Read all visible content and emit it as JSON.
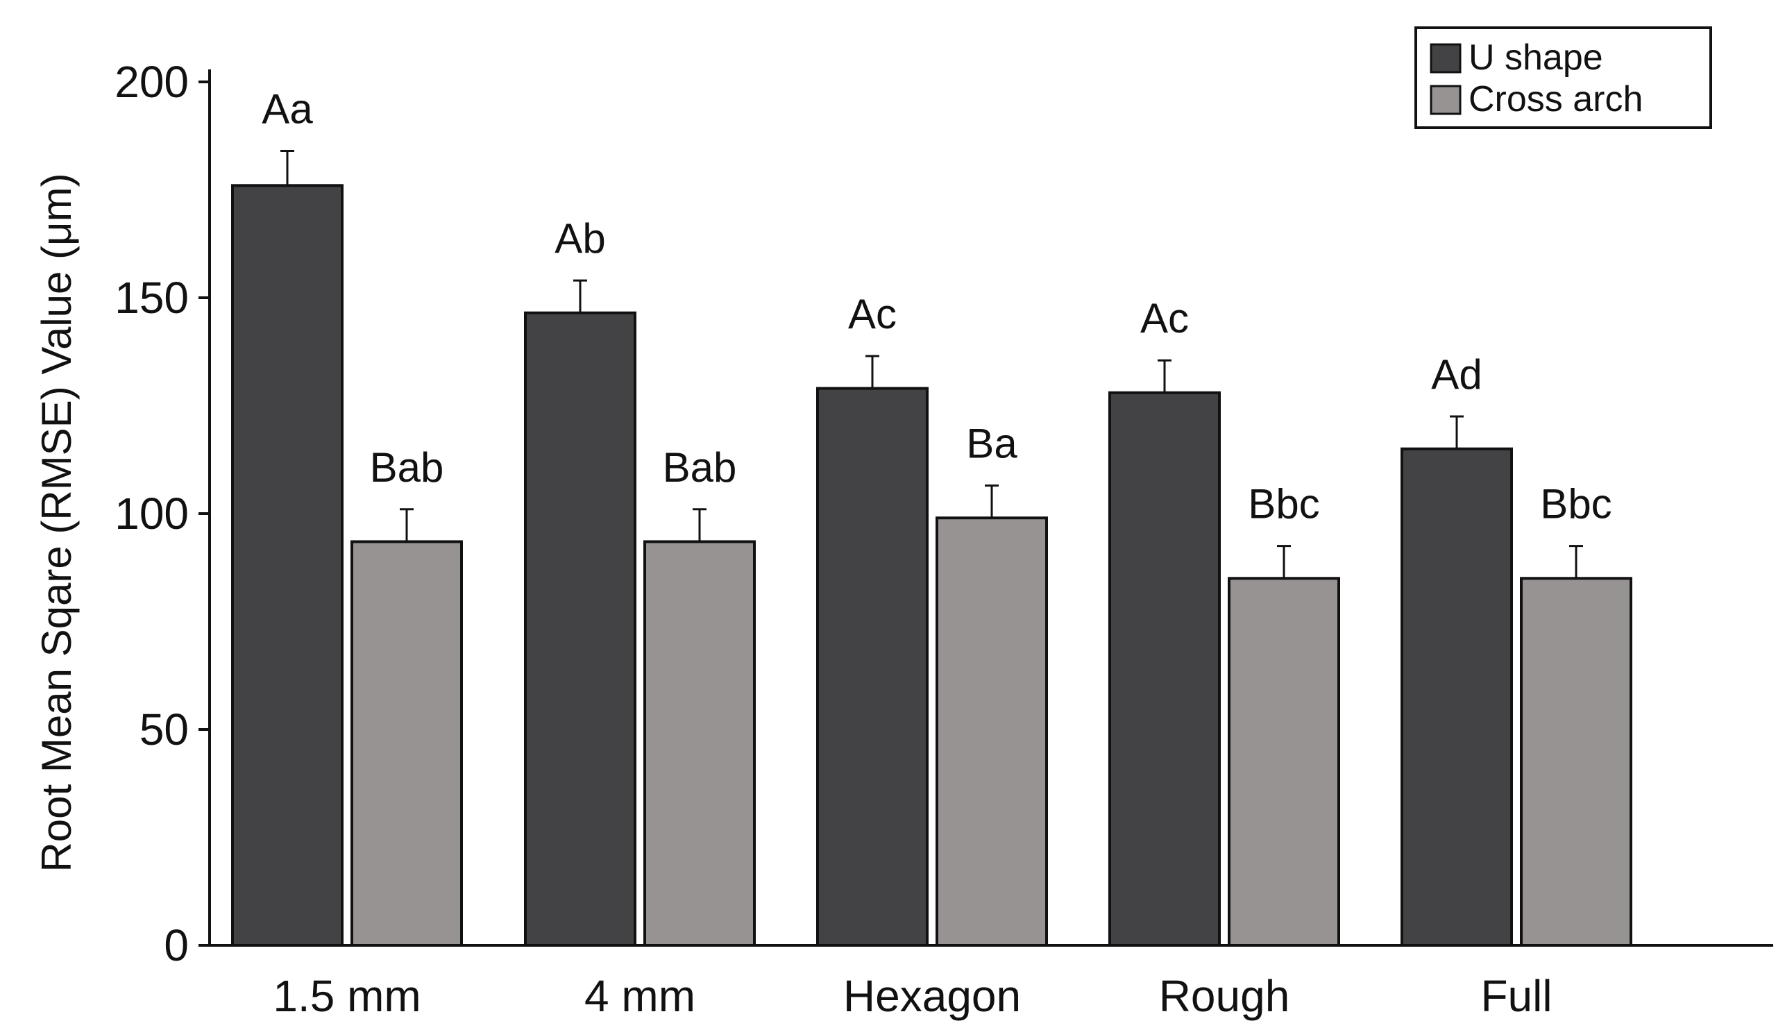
{
  "chart_data": {
    "type": "bar",
    "title": "",
    "xlabel": "",
    "ylabel": "Root Mean Sqare (RMSE) Value (μm)",
    "ylim": [
      0,
      200
    ],
    "yticks": [
      0,
      50,
      100,
      150,
      200
    ],
    "categories": [
      "1.5 mm",
      "4 mm",
      "Hexagon",
      "Rough",
      "Full"
    ],
    "series": [
      {
        "name": "U shape",
        "color": "#434345",
        "values": [
          176,
          146.5,
          129,
          128,
          115
        ],
        "errors": [
          8,
          7.5,
          7.5,
          7.5,
          7.5
        ],
        "labels": [
          "Aa",
          "Ab",
          "Ac",
          "Ac",
          "Ad"
        ]
      },
      {
        "name": "Cross arch",
        "color": "#989393",
        "values": [
          93.5,
          93.5,
          99,
          85,
          85
        ],
        "errors": [
          7.5,
          7.5,
          7.5,
          7.5,
          7.5
        ],
        "labels": [
          "Bab",
          "Bab",
          "Ba",
          "Bbc",
          "Bbc"
        ]
      }
    ],
    "grid": false,
    "legend_position": "top-right"
  }
}
